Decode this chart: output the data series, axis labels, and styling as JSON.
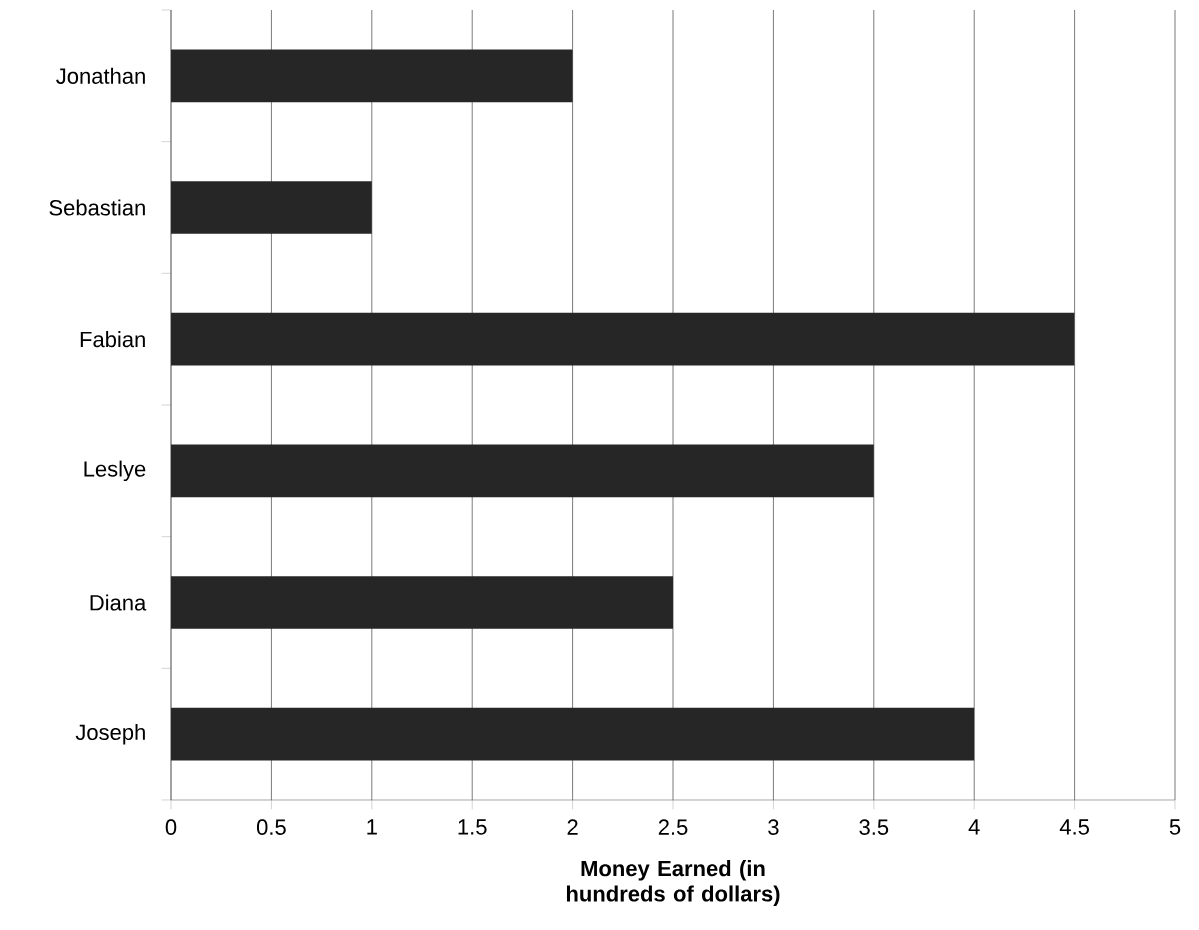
{
  "chart_data": {
    "type": "bar",
    "orientation": "horizontal",
    "categories": [
      "Jonathan",
      "Sebastian",
      "Fabian",
      "Leslye",
      "Diana",
      "Joseph"
    ],
    "values": [
      2,
      1,
      4.5,
      3.5,
      2.5,
      4
    ],
    "color": "#262626",
    "xlabel": "Money Earned (in hundreds of dollars)",
    "xlim": [
      0,
      5
    ],
    "xticks": [
      0,
      0.5,
      1,
      1.5,
      2,
      2.5,
      3,
      3.5,
      4,
      4.5,
      5
    ],
    "grid": "x"
  }
}
